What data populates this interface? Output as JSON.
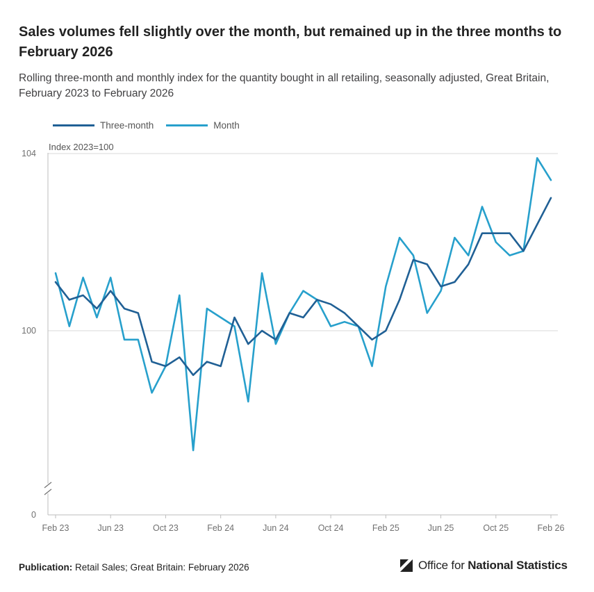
{
  "header": {
    "title": "Sales volumes fell slightly over the month, but remained up in the three months to February 2026",
    "subtitle": "Rolling three-month and monthly index for the quantity bought in all retailing, seasonally adjusted, Great Britain, February 2023 to February 2026"
  },
  "footer": {
    "publication_label": "Publication:",
    "publication_value": "Retail Sales; Great Britain: February 2026",
    "logo_text_prefix": "Office for",
    "logo_text_bold": "National Statistics"
  },
  "colors": {
    "three_month": "#206095",
    "month": "#27a0cc",
    "grid": "#d9d9d9",
    "axis_text": "#707070"
  },
  "chart_data": {
    "type": "line",
    "ylabel": "Index 2023=100",
    "y_ticks": [
      "104",
      "100",
      "0"
    ],
    "y_axis_broken": true,
    "y_range_shown": [
      95.7,
      104
    ],
    "y_axis_zero_label": "0",
    "x_tick_labels": [
      "Feb 23",
      "Jun 23",
      "Oct 23",
      "Feb 24",
      "Jun 24",
      "Oct 24",
      "Feb 25",
      "Jun 25",
      "Oct 25",
      "Feb 26"
    ],
    "x": [
      "Feb 23",
      "Mar 23",
      "Apr 23",
      "May 23",
      "Jun 23",
      "Jul 23",
      "Aug 23",
      "Sep 23",
      "Oct 23",
      "Nov 23",
      "Dec 23",
      "Jan 24",
      "Feb 24",
      "Mar 24",
      "Apr 24",
      "May 24",
      "Jun 24",
      "Jul 24",
      "Aug 24",
      "Sep 24",
      "Oct 24",
      "Nov 24",
      "Dec 24",
      "Jan 25",
      "Feb 25",
      "Mar 25",
      "Apr 25",
      "May 25",
      "Jun 25",
      "Jul 25",
      "Aug 25",
      "Sep 25",
      "Oct 25",
      "Nov 25",
      "Dec 25",
      "Jan 26",
      "Feb 26"
    ],
    "legend_position": "top-left",
    "series": [
      {
        "name": "Three-month",
        "values": [
          101.1,
          100.7,
          100.8,
          100.5,
          100.9,
          100.5,
          100.4,
          99.3,
          99.2,
          99.4,
          99.0,
          99.3,
          99.2,
          100.3,
          99.7,
          100.0,
          99.8,
          100.4,
          100.3,
          100.7,
          100.6,
          100.4,
          100.1,
          99.8,
          100.0,
          100.7,
          101.6,
          101.5,
          101.0,
          101.1,
          101.5,
          102.2,
          102.2,
          102.2,
          101.8,
          102.4,
          103.0
        ]
      },
      {
        "name": "Month",
        "values": [
          101.3,
          100.1,
          101.2,
          100.3,
          101.2,
          99.8,
          99.8,
          98.6,
          99.2,
          100.8,
          97.3,
          100.5,
          100.3,
          100.1,
          98.4,
          101.3,
          99.7,
          100.4,
          100.9,
          100.7,
          100.1,
          100.2,
          100.1,
          99.2,
          101.0,
          102.1,
          101.7,
          100.4,
          100.9,
          102.1,
          101.7,
          102.8,
          102.0,
          101.7,
          101.8,
          103.9,
          103.4
        ]
      }
    ]
  }
}
